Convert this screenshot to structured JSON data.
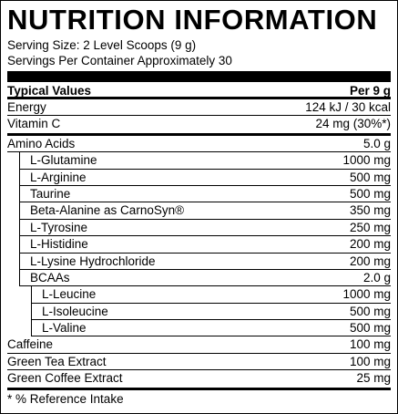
{
  "header": {
    "title": "NUTRITION INFORMATION",
    "serving_size": "Serving Size: 2 Level Scoops (9 g)",
    "servings_per_container": "Servings Per Container Approximately 30"
  },
  "table": {
    "columns": [
      "Typical Values",
      "Per 9 g"
    ],
    "sections": [
      {
        "rows": [
          {
            "label": "Energy",
            "value": "124 kJ / 30 kcal"
          },
          {
            "label": "Vitamin C",
            "value": "24 mg (30%*)"
          }
        ]
      },
      {
        "rows": [
          {
            "label": "Amino Acids",
            "value": "5.0 g",
            "children": [
              {
                "label": "L-Glutamine",
                "value": "1000 mg"
              },
              {
                "label": "L-Arginine",
                "value": "500 mg"
              },
              {
                "label": "Taurine",
                "value": "500 mg"
              },
              {
                "label": "Beta-Alanine as CarnoSyn®",
                "value": "350 mg"
              },
              {
                "label": "L-Tyrosine",
                "value": "250 mg"
              },
              {
                "label": "L-Histidine",
                "value": "200 mg"
              },
              {
                "label": "L-Lysine Hydrochloride",
                "value": "200 mg"
              },
              {
                "label": "BCAAs",
                "value": "2.0 g",
                "children": [
                  {
                    "label": "L-Leucine",
                    "value": "1000 mg"
                  },
                  {
                    "label": "L-Isoleucine",
                    "value": "500 mg"
                  },
                  {
                    "label": "L-Valine",
                    "value": "500 mg"
                  }
                ]
              }
            ]
          },
          {
            "label": "Caffeine",
            "value": "100 mg"
          },
          {
            "label": "Green Tea Extract",
            "value": "100 mg"
          },
          {
            "label": "Green Coffee Extract",
            "value": "25 mg"
          }
        ]
      }
    ]
  },
  "footnote": "*  % Reference Intake"
}
